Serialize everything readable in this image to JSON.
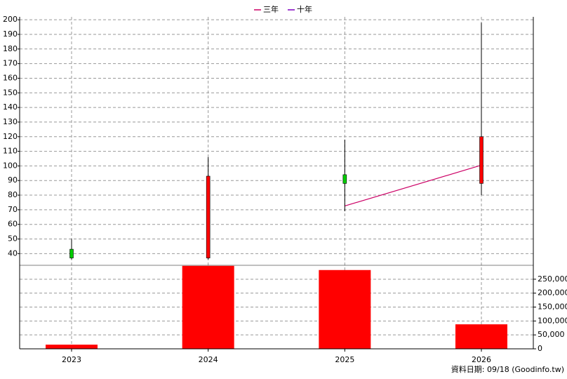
{
  "chart_data": {
    "type": "candlestick",
    "categories": [
      "2023",
      "2024",
      "2025",
      "2026"
    ],
    "candles": {
      "open": [
        43,
        37,
        94,
        88
      ],
      "high": [
        50,
        106,
        118,
        198
      ],
      "low": [
        36,
        36,
        69,
        80
      ],
      "close": [
        37,
        93,
        88,
        120
      ],
      "up_color": "#ff0000",
      "down_color": "#00cc00"
    },
    "series": [
      {
        "name": "三年",
        "color": "#cc0066",
        "values": [
          null,
          null,
          72.6,
          100.5
        ]
      },
      {
        "name": "十年",
        "color": "#8000c0",
        "values": [
          null,
          null,
          null,
          null
        ]
      }
    ],
    "ylim": [
      32,
      202
    ],
    "yticks": [
      40,
      50,
      60,
      70,
      80,
      90,
      100,
      110,
      120,
      130,
      140,
      150,
      160,
      170,
      180,
      190,
      200
    ],
    "volume": {
      "values": [
        15000,
        298000,
        283000,
        88000
      ],
      "color": "#ff0000",
      "ylim": [
        0,
        300000
      ],
      "yticks": [
        0,
        {
          "value": 50000,
          "label": "50,000"
        },
        {
          "value": 100000,
          "label": "100,000"
        },
        {
          "value": 150000,
          "label": "150,000"
        },
        {
          "value": 200000,
          "label": "200,000"
        },
        {
          "value": 250000,
          "label": "250,000"
        }
      ]
    },
    "grid": true,
    "source": "資料日期: 09/18  (Goodinfo.tw)"
  }
}
